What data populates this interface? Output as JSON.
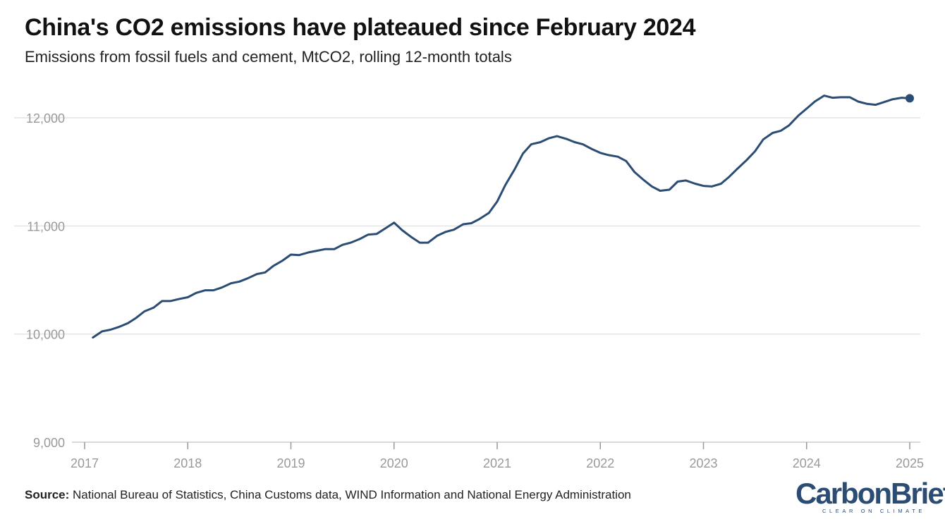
{
  "header": {
    "title": "China's CO2 emissions have plateaued since February 2024",
    "subtitle": "Emissions from fossil fuels and cement, MtCO2, rolling 12-month totals"
  },
  "footer": {
    "source_label": "Source:",
    "source_text": "National Bureau of Statistics, China Customs data, WIND Information and National Energy Administration",
    "logo_word_1": "Carbon",
    "logo_word_2": "Brief",
    "logo_tagline": "CLEAR ON CLIMATE"
  },
  "colors": {
    "line": "#2b4c73",
    "gridline": "#e4e4e4",
    "tick_label": "#999999",
    "axis": "#cccccc"
  },
  "chart_data": {
    "type": "line",
    "title": "China's CO2 emissions have plateaued since February 2024",
    "subtitle": "Emissions from fossil fuels and cement, MtCO2, rolling 12-month totals",
    "xlabel": "",
    "ylabel": "",
    "xlim": [
      2017,
      2025
    ],
    "ylim": [
      9000,
      12000
    ],
    "y_ticks": [
      9000,
      10000,
      11000,
      12000
    ],
    "y_tick_labels": [
      "9,000",
      "10,000",
      "11,000",
      "12,000"
    ],
    "x_ticks": [
      2017,
      2018,
      2019,
      2020,
      2021,
      2022,
      2023,
      2024,
      2025
    ],
    "x_tick_labels": [
      "2017",
      "2018",
      "2019",
      "2020",
      "2021",
      "2022",
      "2023",
      "2024",
      "2025"
    ],
    "grid": true,
    "end_marker": true,
    "series": [
      {
        "x": [
          2017.08,
          2017.17,
          2017.25,
          2017.33,
          2017.42,
          2017.5,
          2017.58,
          2017.67,
          2017.75,
          2017.83,
          2017.92,
          2018.0,
          2018.08,
          2018.17,
          2018.25,
          2018.33,
          2018.42,
          2018.5,
          2018.58,
          2018.67,
          2018.75,
          2018.83,
          2018.92,
          2019.0,
          2019.08,
          2019.17,
          2019.25,
          2019.33,
          2019.42,
          2019.5,
          2019.58,
          2019.67,
          2019.75,
          2019.83,
          2019.92,
          2020.0,
          2020.08,
          2020.17,
          2020.25,
          2020.33,
          2020.42,
          2020.5,
          2020.58,
          2020.67,
          2020.75,
          2020.83,
          2020.92,
          2021.0,
          2021.08,
          2021.17,
          2021.25,
          2021.33,
          2021.42,
          2021.5,
          2021.58,
          2021.67,
          2021.75,
          2021.83,
          2021.92,
          2022.0,
          2022.08,
          2022.17,
          2022.25,
          2022.33,
          2022.42,
          2022.5,
          2022.58,
          2022.67,
          2022.75,
          2022.83,
          2022.92,
          2023.0,
          2023.08,
          2023.17,
          2023.25,
          2023.33,
          2023.42,
          2023.5,
          2023.58,
          2023.67,
          2023.75,
          2023.83,
          2023.92,
          2024.0,
          2024.08,
          2024.17,
          2024.25,
          2024.33,
          2024.42,
          2024.5,
          2024.58,
          2024.67,
          2024.75,
          2024.83,
          2024.92,
          2025.0
        ],
        "values": [
          9968,
          10025,
          10040,
          10065,
          10100,
          10150,
          10210,
          10245,
          10305,
          10305,
          10325,
          10340,
          10380,
          10405,
          10405,
          10430,
          10470,
          10485,
          10515,
          10555,
          10570,
          10630,
          10680,
          10735,
          10730,
          10755,
          10770,
          10785,
          10785,
          10825,
          10845,
          10880,
          10920,
          10925,
          10980,
          11030,
          10960,
          10895,
          10845,
          10845,
          10910,
          10945,
          10965,
          11015,
          11025,
          11065,
          11120,
          11225,
          11380,
          11525,
          11670,
          11755,
          11775,
          11810,
          11830,
          11805,
          11775,
          11755,
          11710,
          11675,
          11655,
          11640,
          11600,
          11500,
          11425,
          11365,
          11325,
          11335,
          11410,
          11420,
          11390,
          11370,
          11365,
          11390,
          11455,
          11530,
          11610,
          11690,
          11800,
          11860,
          11880,
          11930,
          12020,
          12085,
          12150,
          12205,
          12185,
          12190,
          12190,
          12150,
          12130,
          12120,
          12145,
          12170,
          12185,
          12180
        ]
      }
    ]
  }
}
